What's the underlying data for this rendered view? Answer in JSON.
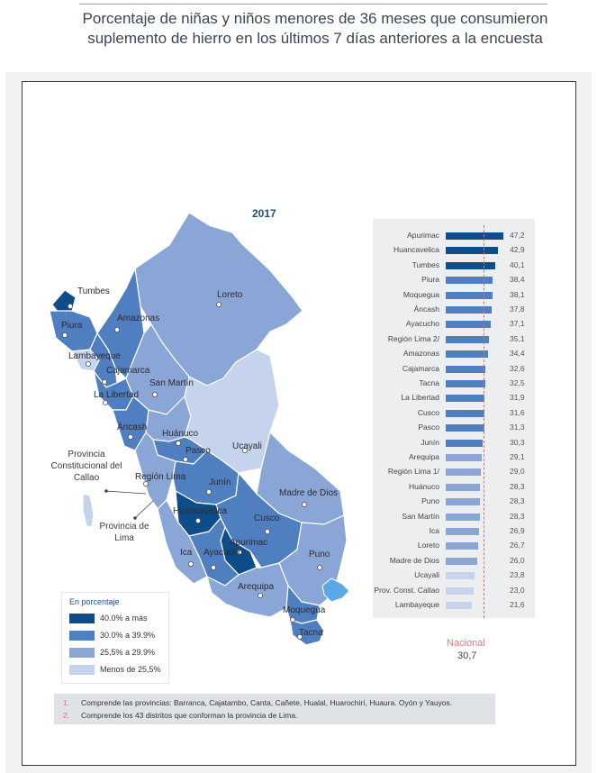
{
  "title": "Porcentaje de niñas y niños menores de 36 meses que consumieron suplemento de hierro en los últimos 7 días anteriores a la encuesta",
  "year": "2017",
  "colors": {
    "range_40_plus": "#0f4d8a",
    "range_30_39": "#4f7fc0",
    "range_25_29": "#8aa6d6",
    "range_below_25": "#c5d3ec",
    "lake": "#5aa9e6",
    "national_line": "#e36b6b"
  },
  "map": {
    "labels": {
      "tumbes": "Tumbes",
      "piura": "Piura",
      "lambayeque": "Lambayeque",
      "amazonas": "Amazonas",
      "cajamarca": "Cajamarca",
      "la_libertad": "La Libertad",
      "san_martin": "San Martín",
      "loreto": "Loreto",
      "ancash": "Áncash",
      "huanuco": "Huánuco",
      "pasco": "Pasco",
      "ucayali": "Ucayali",
      "region_lima": "Región Lima",
      "junin": "Junín",
      "madre_de_dios": "Madre de Dios",
      "huancavelica": "Huancavelica",
      "cusco": "Cusco",
      "ica": "Ica",
      "ayacucho": "Ayacucho",
      "apurimac": "Apurimac",
      "puno": "Puno",
      "arequipa": "Arequipa",
      "moquegua": "Moquegua",
      "tacna": "Tacna"
    },
    "callao_callout": "Provincia Constitucional del Callao",
    "lima_callout": "Provincia de Lima"
  },
  "legend": {
    "title": "En porcentaje",
    "items": [
      {
        "label": "40.0% a más",
        "color": "#0f4d8a"
      },
      {
        "label": "30.0% a 39.9%",
        "color": "#4f7fc0"
      },
      {
        "label": "25,5% a 29.9%",
        "color": "#8aa6d6"
      },
      {
        "label": "Menos de 25,5%",
        "color": "#c5d3ec"
      }
    ]
  },
  "chart_data": {
    "type": "bar",
    "orientation": "horizontal",
    "categories": [
      "Apurimac",
      "Huancavelica",
      "Tumbes",
      "Piura",
      "Moquegua",
      "Áncash",
      "Ayacucho",
      "Región Lima 2/",
      "Amazonas",
      "Cajamarca",
      "Tacna",
      "La Libertad",
      "Cusco",
      "Pasco",
      "Junín",
      "Arequipa",
      "Región Lima 1/",
      "Huánuco",
      "Puno",
      "San Martín",
      "Ica",
      "Loreto",
      "Madre de Dios",
      "Ucayali",
      "Prov. Const. Callao",
      "Lambayeque"
    ],
    "values": [
      47.2,
      42.9,
      40.1,
      38.4,
      38.1,
      37.8,
      37.1,
      35.1,
      34.4,
      32.6,
      32.5,
      31.9,
      31.6,
      31.3,
      30.3,
      29.1,
      29.0,
      28.3,
      28.3,
      28.3,
      26.9,
      26.7,
      26.0,
      23.8,
      23.0,
      21.6
    ],
    "value_labels": [
      "47,2",
      "42,9",
      "40,1",
      "38,4",
      "38,1",
      "37,8",
      "37,1",
      "35,1",
      "34,4",
      "32,6",
      "32,5",
      "31,9",
      "31,6",
      "31,3",
      "30,3",
      "29,1",
      "29,0",
      "28,3",
      "28,3",
      "28,3",
      "26,9",
      "26,7",
      "26,0",
      "23,8",
      "23,0",
      "21,6"
    ],
    "national": {
      "label": "Nacional",
      "value": 30.7,
      "value_label": "30,7"
    }
  },
  "notes": [
    {
      "num": "1.",
      "text": "Comprende las provincias: Barranca, Cajatambo, Canta, Cañete, Hualal, Huarochirí, Huaura. Oyón y Yauyos."
    },
    {
      "num": "2.",
      "text": "Comprende los 43 distritos que conforman la provincia de Lima."
    }
  ]
}
